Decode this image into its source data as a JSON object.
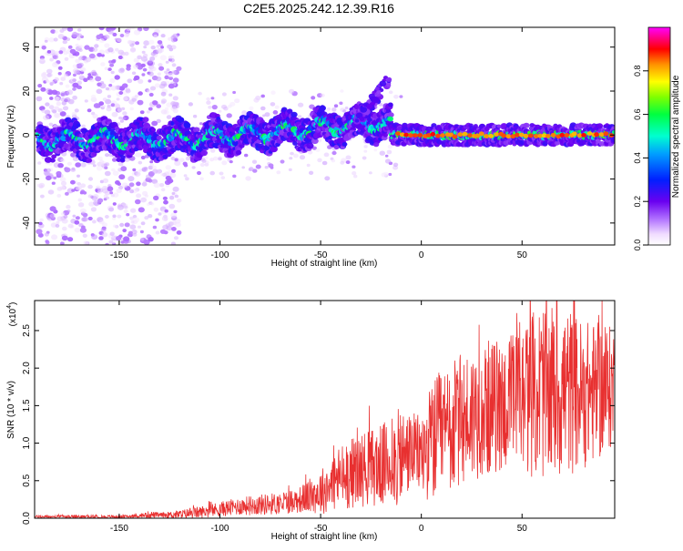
{
  "chart_data": [
    {
      "type": "heatmap",
      "title": "C2E5.2025.242.12.39.R16",
      "xlabel": "Height of straight line (km)",
      "ylabel": "Frequency (Hz)",
      "xlim": [
        -192,
        96
      ],
      "ylim": [
        -50,
        49
      ],
      "xticks": [
        -150,
        -100,
        -50,
        0,
        50
      ],
      "xtick_labels": [
        "-150",
        "-100",
        "-50",
        "0",
        "50"
      ],
      "yticks": [
        -40,
        -20,
        0,
        20,
        40
      ],
      "ytick_labels": [
        "-40",
        "-20",
        "0",
        "20",
        "40"
      ],
      "colorbar": {
        "label": "Normalized spectral amplitude",
        "range": [
          0,
          1
        ],
        "ticks": [
          0,
          0.2,
          0.4,
          0.6,
          0.8
        ],
        "tick_labels": [
          "0.0",
          "0.2",
          "0.4",
          "0.6",
          "0.8"
        ],
        "colormap": "rainbow (white-violet-blue-cyan-green-yellow-orange-red-magenta)"
      },
      "features": {
        "broadband_scatter_x_range": [
          -190,
          -120
        ],
        "drift_segment": {
          "x_range": [
            -190,
            -15
          ],
          "center_freq_hz": [
            -2,
            6
          ]
        },
        "stable_segment": {
          "x_range": [
            -15,
            96
          ],
          "center_freq_hz": 0
        }
      }
    },
    {
      "type": "line",
      "xlabel": "Height of straight line (km)",
      "ylabel": "SNR (10 * v/v)",
      "y_multiplier": "(x10^4)",
      "multiplier_base": "(x10",
      "multiplier_exp": "4",
      "xlim": [
        -192,
        96
      ],
      "ylim": [
        0,
        2.9
      ],
      "xticks": [
        -150,
        -100,
        -50,
        0,
        50
      ],
      "xtick_labels": [
        "-150",
        "-100",
        "-50",
        "0",
        "50"
      ],
      "yticks": [
        0,
        0.5,
        1.0,
        1.5,
        2.0,
        2.5
      ],
      "ytick_labels": [
        "0.0",
        "0.5",
        "1.0",
        "1.5",
        "2.0",
        "2.5"
      ],
      "series": [
        {
          "name": "SNR",
          "color": "#e83030",
          "x": [
            -192,
            -180,
            -170,
            -160,
            -150,
            -140,
            -135,
            -130,
            -120,
            -110,
            -100,
            -90,
            -80,
            -70,
            -60,
            -50,
            -40,
            -30,
            -20,
            -15,
            -10,
            -5,
            0,
            5,
            10,
            20,
            30,
            40,
            50,
            60,
            70,
            80,
            90,
            96
          ],
          "mean": [
            0.02,
            0.02,
            0.02,
            0.02,
            0.02,
            0.03,
            0.05,
            0.04,
            0.05,
            0.08,
            0.12,
            0.16,
            0.18,
            0.2,
            0.25,
            0.35,
            0.55,
            0.65,
            0.7,
            0.75,
            0.8,
            0.9,
            0.85,
            1.0,
            1.1,
            1.3,
            1.45,
            1.5,
            1.6,
            1.7,
            1.7,
            1.65,
            1.7,
            1.75
          ],
          "spread": [
            0.02,
            0.02,
            0.02,
            0.02,
            0.02,
            0.02,
            0.05,
            0.03,
            0.06,
            0.08,
            0.1,
            0.12,
            0.14,
            0.15,
            0.18,
            0.3,
            0.45,
            0.5,
            0.55,
            0.6,
            0.7,
            0.5,
            0.55,
            0.8,
            0.9,
            0.9,
            0.9,
            0.9,
            1.0,
            1.2,
            1.2,
            1.0,
            0.9,
            0.8
          ]
        }
      ]
    }
  ]
}
